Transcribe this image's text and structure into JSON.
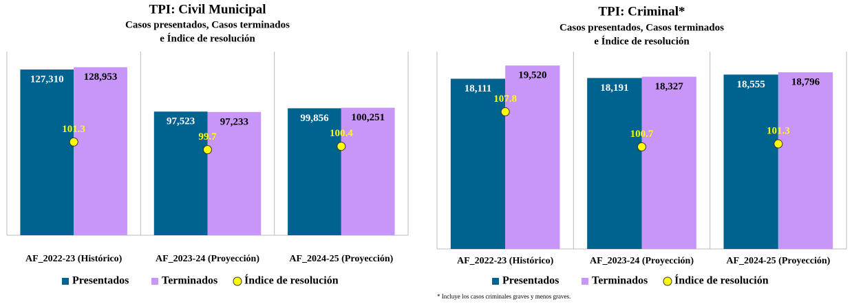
{
  "chart_data": [
    {
      "type": "bar",
      "title": "TPI: Civil Municipal",
      "subtitle": [
        "Casos presentados, Casos terminados",
        "e Índice de resolución"
      ],
      "categories": [
        "AF_2022-23 (Histórico)",
        "AF_2023-24 (Proyección)",
        "AF_2024-25 (Proyección)"
      ],
      "series": [
        {
          "name": "Presentados",
          "color": "#00628f",
          "values": [
            127310,
            97523,
            99856
          ],
          "value_labels": [
            "127,310",
            "97,523",
            "99,856"
          ]
        },
        {
          "name": "Terminados",
          "color": "#c896f8",
          "values": [
            128953,
            97233,
            100251
          ],
          "value_labels": [
            "128,953",
            "97,233",
            "100,251"
          ]
        },
        {
          "name": "Índice de resolución",
          "type": "line",
          "axis": "y2",
          "color": "#ffff00",
          "values": [
            101.3,
            99.7,
            100.4
          ]
        }
      ],
      "ylim": [
        10000,
        140000
      ],
      "y2lim": [
        82,
        120
      ]
    },
    {
      "type": "bar",
      "title": "TPI: Criminal*",
      "subtitle": [
        "Casos presentados, Casos terminados",
        "e Índice de resolución"
      ],
      "categories": [
        "AF_2022-23 (Histórico)",
        "AF_2023-24 (Proyección)",
        "AF_2024-25 (Proyección)"
      ],
      "series": [
        {
          "name": "Presentados",
          "color": "#00628f",
          "values": [
            18111,
            18191,
            18555
          ],
          "value_labels": [
            "18,111",
            "18,191",
            "18,555"
          ]
        },
        {
          "name": "Terminados",
          "color": "#c896f8",
          "values": [
            19520,
            18327,
            18796
          ],
          "value_labels": [
            "19,520",
            "18,327",
            "18,796"
          ]
        },
        {
          "name": "Índice de resolución",
          "type": "line",
          "axis": "y2",
          "color": "#ffff00",
          "values": [
            107.8,
            100.7,
            101.3
          ]
        }
      ],
      "ylim": [
        0,
        21000
      ],
      "y2lim": [
        80,
        120
      ],
      "note": "* Incluye los casos criminales graves y menos graves."
    }
  ]
}
